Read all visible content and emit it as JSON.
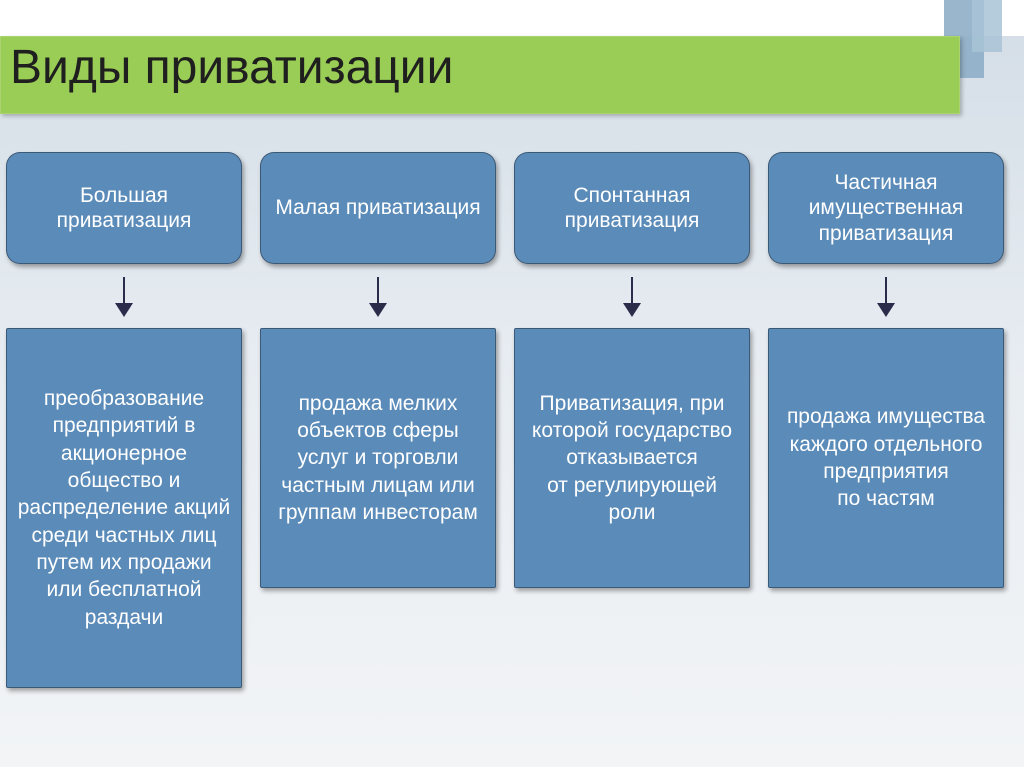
{
  "title": "Виды приватизации",
  "colors": {
    "title_bg": "#9acd55",
    "title_text": "#1f1f1f",
    "box_bg": "#5b8bb8",
    "box_text": "#ffffff",
    "arrow": "#2b2b4a",
    "bot_box_bg": "#5b8bb8"
  },
  "typography": {
    "title_fontsize": 48,
    "box_fontsize": 21
  },
  "columns": [
    {
      "top_label": "Большая приватизация",
      "bottom_label": "преобразование предприятий\nв акционерное общество и распределение акций среди частных лиц путем их продажи или бесплатной раздачи",
      "bottom_height": 360
    },
    {
      "top_label": "Малая приватизация",
      "bottom_label": "продажа мелких объектов сферы услуг и торговли частным лицам или группам инвесторам",
      "bottom_height": 260
    },
    {
      "top_label": "Спонтанная приватизация",
      "bottom_label": "Приватизация, при которой государство отказывается от регулирующей роли",
      "bottom_height": 260
    },
    {
      "top_label": "Частичная имущественная приватизация",
      "bottom_label": "продажа имущества каждого отдельного предприятия по частям",
      "bottom_height": 260
    }
  ]
}
